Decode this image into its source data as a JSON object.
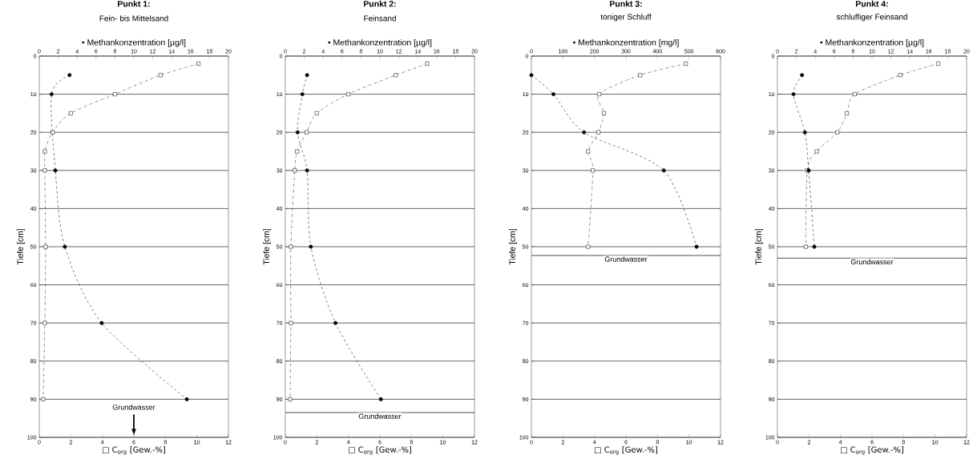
{
  "chart_data": [
    {
      "type": "line",
      "title": "Punkt 1:",
      "subtitle": "Fein- bis Mittelsand",
      "xlabel": "□ C$_{org}$ [Gew.-%]",
      "x2label": "• Methankonzentration [µg/l]",
      "ylabel": "Tiefe [cm]",
      "xlim": [
        0,
        12
      ],
      "xticks": [
        0,
        2,
        4,
        6,
        8,
        10,
        12
      ],
      "x2lim": [
        0,
        20
      ],
      "x2ticks": [
        0,
        2,
        4,
        6,
        8,
        10,
        12,
        14,
        16,
        18,
        20
      ],
      "ylim": [
        100,
        0
      ],
      "yticks": [
        0,
        10,
        20,
        30,
        40,
        50,
        60,
        70,
        80,
        90,
        100
      ],
      "grid": "y",
      "series": [
        {
          "axis": "x2",
          "color": "#000000",
          "marker": "circle",
          "line_style": "dashed",
          "x": [
            3.2,
            1.3,
            1.7,
            2.7,
            6.6,
            15.6
          ],
          "values": [
            5,
            10,
            30,
            50,
            70,
            90
          ]
        },
        {
          "color": "#000000",
          "marker": "square",
          "line_style": "dotted",
          "x": [
            10.1,
            7.7,
            4.8,
            2.0,
            0.85,
            0.35,
            0.35,
            0.4,
            0.35,
            0.25
          ],
          "values": [
            2,
            5,
            10,
            15,
            20,
            25,
            30,
            50,
            70,
            90
          ]
        }
      ],
      "annotations": [
        "Grundwasser"
      ]
    },
    {
      "type": "line",
      "title": "Punkt 2:",
      "subtitle": "Feinsand",
      "xlabel": "□ C$_{org}$ [Gew.-%]",
      "x2label": "• Methankonzentration [µg/l]",
      "ylabel": "Tiefe [cm]",
      "xlim": [
        0,
        12
      ],
      "xticks": [
        0,
        2,
        4,
        6,
        8,
        10,
        12
      ],
      "x2lim": [
        0,
        20
      ],
      "x2ticks": [
        0,
        2,
        4,
        6,
        8,
        10,
        12,
        14,
        16,
        18,
        20
      ],
      "ylim": [
        100,
        0
      ],
      "yticks": [
        0,
        10,
        20,
        30,
        40,
        50,
        60,
        70,
        80,
        90,
        100
      ],
      "grid": "y",
      "series": [
        {
          "axis": "x2",
          "color": "#000000",
          "marker": "circle",
          "line_style": "dashed",
          "x": [
            2.3,
            1.8,
            1.3,
            2.3,
            2.7,
            5.3,
            10.1
          ],
          "values": [
            5,
            10,
            20,
            30,
            50,
            70,
            90
          ]
        },
        {
          "color": "#000000",
          "marker": "square",
          "line_style": "dotted",
          "x": [
            9.0,
            7.0,
            4.0,
            2.0,
            1.35,
            0.75,
            0.6,
            0.35,
            0.35,
            0.3
          ],
          "values": [
            2,
            5,
            10,
            15,
            20,
            25,
            30,
            50,
            70,
            90
          ]
        }
      ],
      "ref_lines": [
        {
          "axis": "y",
          "value": 93.5,
          "label": "Grundwasser"
        }
      ]
    },
    {
      "type": "line",
      "title": "Punkt 3:",
      "subtitle": "toniger Schluff",
      "xlabel": "□ C$_{org}$ [Gew.-%]",
      "x2label": "• Methankonzentration [mg/l]",
      "ylabel": "Tiefe [cm]",
      "xlim": [
        0,
        12
      ],
      "xticks": [
        0,
        2,
        4,
        6,
        8,
        10,
        12
      ],
      "x2lim": [
        0,
        600
      ],
      "x2ticks": [
        0,
        100,
        200,
        300,
        400,
        500,
        600
      ],
      "ylim": [
        100,
        0
      ],
      "yticks": [
        0,
        10,
        20,
        30,
        40,
        50,
        60,
        70,
        80,
        90,
        100
      ],
      "grid": "y",
      "series": [
        {
          "axis": "x2",
          "color": "#000000",
          "marker": "circle",
          "line_style": "dashed",
          "x": [
            0,
            70,
            167,
            420,
            524
          ],
          "values": [
            5,
            10,
            20,
            30,
            50
          ]
        },
        {
          "color": "#000000",
          "marker": "square",
          "line_style": "dotted",
          "x": [
            9.8,
            6.9,
            4.3,
            4.6,
            4.25,
            3.6,
            3.9,
            3.6
          ],
          "values": [
            2,
            5,
            10,
            15,
            20,
            25,
            30,
            50
          ]
        }
      ],
      "ref_lines": [
        {
          "axis": "y",
          "value": 52.3,
          "label": "Grundwasser"
        }
      ]
    },
    {
      "type": "line",
      "title": "Punkt 4:",
      "subtitle": "schluffiger Feinsand",
      "xlabel": "□ C$_{org}$ [Gew.-%]",
      "x2label": "• Methankonzentration [µg/l]",
      "ylabel": "Tiefe [cm]",
      "xlim": [
        0,
        12
      ],
      "xticks": [
        0,
        2,
        4,
        6,
        8,
        10,
        12
      ],
      "x2lim": [
        0,
        20
      ],
      "x2ticks": [
        0,
        2,
        4,
        6,
        8,
        10,
        12,
        14,
        16,
        18,
        20
      ],
      "ylim": [
        100,
        0
      ],
      "yticks": [
        0,
        10,
        20,
        30,
        40,
        50,
        60,
        70,
        80,
        90,
        100
      ],
      "grid": "y",
      "series": [
        {
          "axis": "x2",
          "color": "#000000",
          "marker": "circle",
          "line_style": "dashed",
          "x": [
            2.6,
            1.7,
            2.9,
            3.3,
            3.9
          ],
          "values": [
            5,
            10,
            20,
            30,
            50
          ]
        },
        {
          "color": "#000000",
          "marker": "square",
          "line_style": "dotted",
          "x": [
            10.2,
            7.8,
            4.9,
            4.4,
            3.8,
            2.5,
            1.9,
            1.8
          ],
          "values": [
            2,
            5,
            10,
            15,
            20,
            25,
            30,
            50
          ]
        }
      ],
      "ref_lines": [
        {
          "axis": "y",
          "value": 53,
          "label": "Grundwasser"
        }
      ]
    }
  ]
}
